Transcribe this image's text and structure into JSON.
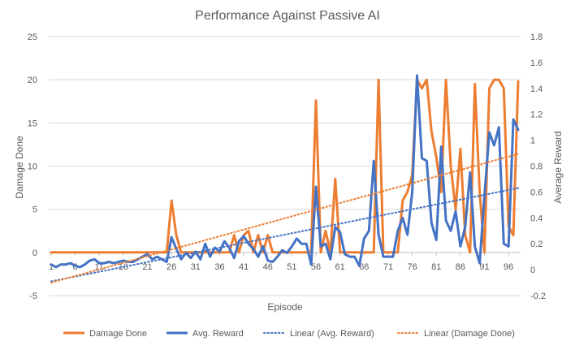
{
  "chart_data": {
    "type": "line",
    "title": "Performance Against Passive AI",
    "xlabel": "Episode",
    "ylabel_left": "Damage Done",
    "ylabel_right": "Average Reward",
    "y_left": {
      "min": -5,
      "max": 25,
      "ticks": [
        -5,
        0,
        5,
        10,
        15,
        20,
        25
      ]
    },
    "y_right": {
      "min": -0.2,
      "max": 1.8,
      "ticks": [
        "-0.2",
        "0",
        "0.2",
        "0.4",
        "0.6",
        "0.8",
        "1",
        "1.2",
        "1.4",
        "1.6",
        "1.8"
      ]
    },
    "x_tick_labels": [
      "1",
      "6",
      "11",
      "16",
      "21",
      "26",
      "31",
      "36",
      "41",
      "46",
      "51",
      "56",
      "61",
      "66",
      "71",
      "76",
      "81",
      "86",
      "91",
      "96"
    ],
    "episodes_count": 98,
    "series": [
      {
        "name": "Damage Done",
        "axis": "left",
        "color": "#ED7D31",
        "values": [
          0,
          0,
          0,
          0,
          0,
          0,
          0,
          0,
          0,
          0,
          0,
          0,
          0,
          0,
          0,
          0,
          0,
          0,
          0,
          0,
          0,
          0,
          0,
          0,
          0,
          6,
          2,
          0,
          0,
          0,
          0,
          0,
          0,
          0,
          0,
          0,
          0,
          0,
          2,
          0,
          2,
          2.5,
          0,
          2,
          0,
          2,
          0,
          0,
          0,
          0,
          0,
          0,
          0,
          0,
          0,
          17.6,
          0,
          2.5,
          0,
          8.5,
          0,
          0,
          0,
          0,
          0,
          0,
          0,
          0,
          20,
          0,
          0,
          0,
          0,
          6,
          7,
          9,
          20,
          19,
          20,
          14,
          11,
          7,
          20,
          10,
          5,
          12,
          2,
          0,
          19.5,
          7,
          0,
          19,
          20,
          20,
          19,
          3,
          2,
          19.8
        ]
      },
      {
        "name": "Avg. Reward",
        "axis": "right",
        "color": "#4472C4",
        "values": [
          0.04,
          0.02,
          0.04,
          0.04,
          0.05,
          0.03,
          0.02,
          0.04,
          0.07,
          0.08,
          0.05,
          0.05,
          0.06,
          0.05,
          0.06,
          0.07,
          0.06,
          0.06,
          0.08,
          0.1,
          0.12,
          0.08,
          0.1,
          0.08,
          0.06,
          0.25,
          0.16,
          0.08,
          0.13,
          0.09,
          0.14,
          0.08,
          0.2,
          0.1,
          0.17,
          0.14,
          0.22,
          0.17,
          0.09,
          0.22,
          0.26,
          0.2,
          0.16,
          0.1,
          0.18,
          0.07,
          0.06,
          0.1,
          0.15,
          0.13,
          0.18,
          0.24,
          0.2,
          0.2,
          0.04,
          0.64,
          0.18,
          0.2,
          0.08,
          0.33,
          0.29,
          0.12,
          0.1,
          0.1,
          0.03,
          0.24,
          0.3,
          0.84,
          0.27,
          0.1,
          0.1,
          0.1,
          0.3,
          0.4,
          0.27,
          0.6,
          1.5,
          0.86,
          0.84,
          0.36,
          0.23,
          0.95,
          0.38,
          0.3,
          0.45,
          0.18,
          0.33,
          0.75,
          0.18,
          0.05,
          0.57,
          1.06,
          0.96,
          1.1,
          0.2,
          0.18,
          1.16,
          1.08
        ]
      },
      {
        "name": "Linear (Avg. Reward)",
        "axis": "right",
        "color": "#4472C4",
        "trendline": true,
        "start": -0.09,
        "end": 0.63
      },
      {
        "name": "Linear (Damage Done)",
        "axis": "left",
        "color": "#ED7D31",
        "trendline": true,
        "start": -3.5,
        "end": 11.4
      }
    ],
    "legend_position": "bottom",
    "grid": true
  }
}
